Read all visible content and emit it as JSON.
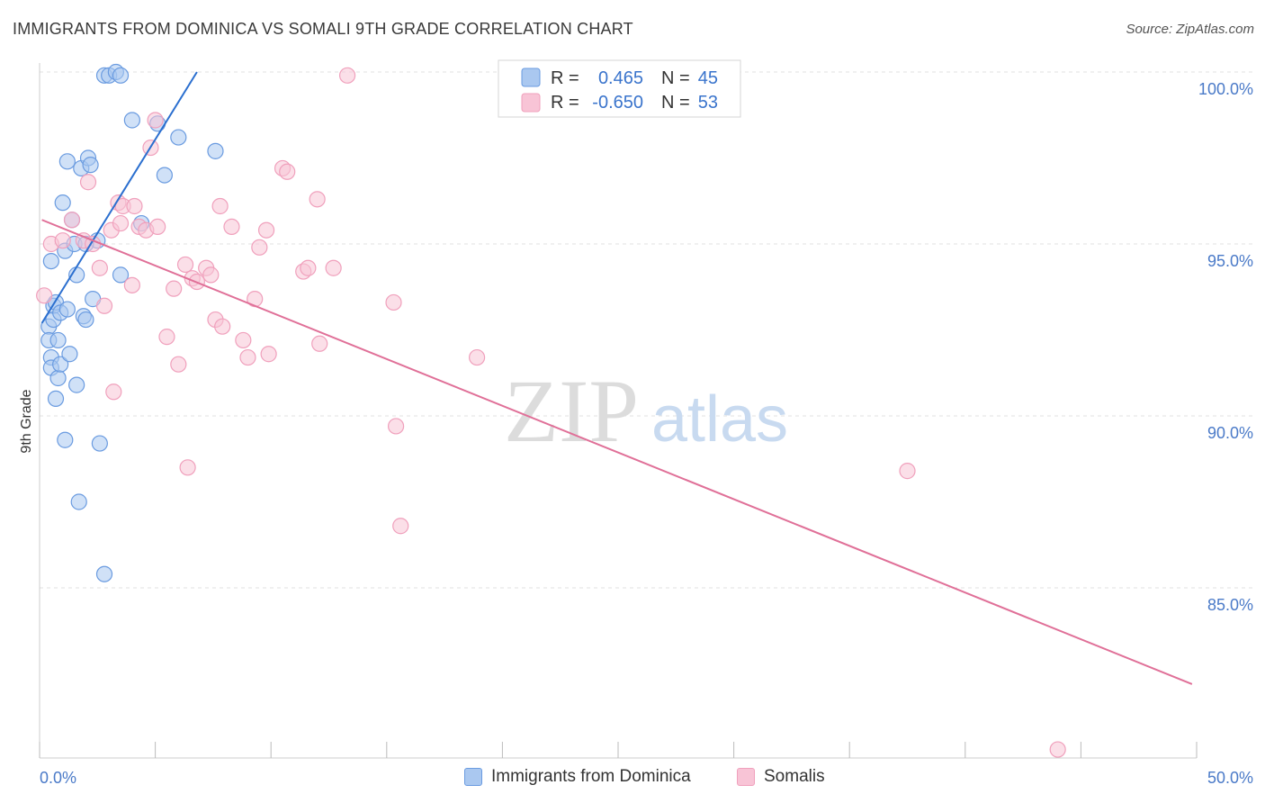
{
  "chart_data": {
    "type": "scatter",
    "title": "IMMIGRANTS FROM DOMINICA VS SOMALI 9TH GRADE CORRELATION CHART",
    "source": "Source: ZipAtlas.com",
    "ylabel": "9th Grade",
    "xlim": [
      0,
      50
    ],
    "ylim": [
      80.0,
      100.5
    ],
    "x_tick_labels": [
      "0.0%",
      "50.0%"
    ],
    "y_ticks": [
      85,
      90,
      95,
      100
    ],
    "y_tick_labels": [
      "85.0%",
      "90.0%",
      "95.0%",
      "100.0%"
    ],
    "watermark": {
      "zip": "ZIP",
      "atlas": "atlas"
    },
    "legend": {
      "r_label": "R =",
      "n_label": "N =",
      "entries": [
        {
          "r": "0.465",
          "n": "45"
        },
        {
          "r": "-0.650",
          "n": "53"
        }
      ]
    },
    "series": [
      {
        "name": "Immigrants from Dominica",
        "color": "#6a9be0",
        "fill": "#aac8f0",
        "line_color": "#2b6fcf",
        "trend": {
          "x": [
            0.1,
            6.8
          ],
          "y": [
            92.7,
            100.0
          ]
        },
        "points": [
          [
            0.4,
            92.6
          ],
          [
            0.4,
            92.2
          ],
          [
            0.5,
            91.7
          ],
          [
            0.5,
            91.4
          ],
          [
            0.6,
            93.2
          ],
          [
            0.6,
            92.8
          ],
          [
            0.7,
            90.5
          ],
          [
            0.7,
            93.3
          ],
          [
            0.8,
            91.1
          ],
          [
            0.8,
            92.2
          ],
          [
            0.9,
            91.5
          ],
          [
            0.5,
            94.5
          ],
          [
            0.9,
            93.0
          ],
          [
            1.0,
            96.2
          ],
          [
            1.1,
            94.8
          ],
          [
            1.1,
            89.3
          ],
          [
            1.2,
            97.4
          ],
          [
            1.2,
            93.1
          ],
          [
            1.3,
            91.8
          ],
          [
            1.4,
            95.7
          ],
          [
            1.5,
            95.0
          ],
          [
            1.6,
            94.1
          ],
          [
            1.6,
            90.9
          ],
          [
            1.7,
            87.5
          ],
          [
            1.8,
            97.2
          ],
          [
            1.9,
            92.9
          ],
          [
            2.0,
            92.8
          ],
          [
            2.1,
            97.5
          ],
          [
            2.2,
            97.3
          ],
          [
            2.3,
            93.4
          ],
          [
            2.5,
            95.1
          ],
          [
            2.6,
            89.2
          ],
          [
            2.8,
            85.4
          ],
          [
            2.8,
            99.9
          ],
          [
            3.0,
            99.9
          ],
          [
            3.3,
            100.0
          ],
          [
            3.5,
            99.9
          ],
          [
            3.5,
            94.1
          ],
          [
            4.0,
            98.6
          ],
          [
            4.4,
            95.6
          ],
          [
            5.1,
            98.5
          ],
          [
            5.4,
            97.0
          ],
          [
            6.0,
            98.1
          ],
          [
            7.6,
            97.7
          ],
          [
            2.0,
            95.0
          ]
        ]
      },
      {
        "name": "Somalis",
        "color": "#f0a0bc",
        "fill": "#f8c4d6",
        "line_color": "#e07098",
        "trend": {
          "x": [
            0.1,
            49.8
          ],
          "y": [
            95.7,
            82.2
          ]
        },
        "points": [
          [
            0.2,
            93.5
          ],
          [
            0.5,
            95.0
          ],
          [
            1.0,
            95.1
          ],
          [
            1.4,
            95.7
          ],
          [
            1.9,
            95.1
          ],
          [
            2.1,
            96.8
          ],
          [
            2.3,
            95.0
          ],
          [
            2.6,
            94.3
          ],
          [
            2.8,
            93.2
          ],
          [
            3.1,
            95.4
          ],
          [
            3.2,
            90.7
          ],
          [
            3.4,
            96.2
          ],
          [
            3.5,
            95.6
          ],
          [
            3.6,
            96.1
          ],
          [
            4.0,
            93.8
          ],
          [
            4.1,
            96.1
          ],
          [
            4.3,
            95.5
          ],
          [
            4.6,
            95.4
          ],
          [
            4.8,
            97.8
          ],
          [
            5.0,
            98.6
          ],
          [
            5.1,
            95.5
          ],
          [
            5.5,
            92.3
          ],
          [
            5.8,
            93.7
          ],
          [
            6.0,
            91.5
          ],
          [
            6.3,
            94.4
          ],
          [
            6.4,
            88.5
          ],
          [
            6.6,
            94.0
          ],
          [
            6.8,
            93.9
          ],
          [
            7.2,
            94.3
          ],
          [
            7.4,
            94.1
          ],
          [
            7.6,
            92.8
          ],
          [
            7.8,
            96.1
          ],
          [
            7.9,
            92.6
          ],
          [
            8.3,
            95.5
          ],
          [
            8.8,
            92.2
          ],
          [
            9.0,
            91.7
          ],
          [
            9.3,
            93.4
          ],
          [
            9.5,
            94.9
          ],
          [
            9.8,
            95.4
          ],
          [
            9.9,
            91.8
          ],
          [
            10.5,
            97.2
          ],
          [
            10.7,
            97.1
          ],
          [
            11.4,
            94.2
          ],
          [
            11.6,
            94.3
          ],
          [
            12.0,
            96.3
          ],
          [
            12.1,
            92.1
          ],
          [
            12.7,
            94.3
          ],
          [
            13.3,
            99.9
          ],
          [
            15.3,
            93.3
          ],
          [
            15.4,
            89.7
          ],
          [
            15.6,
            86.8
          ],
          [
            18.9,
            91.7
          ],
          [
            44.0,
            80.3
          ]
        ]
      }
    ],
    "extra_pink_points": [
      [
        37.5,
        88.4
      ]
    ]
  }
}
